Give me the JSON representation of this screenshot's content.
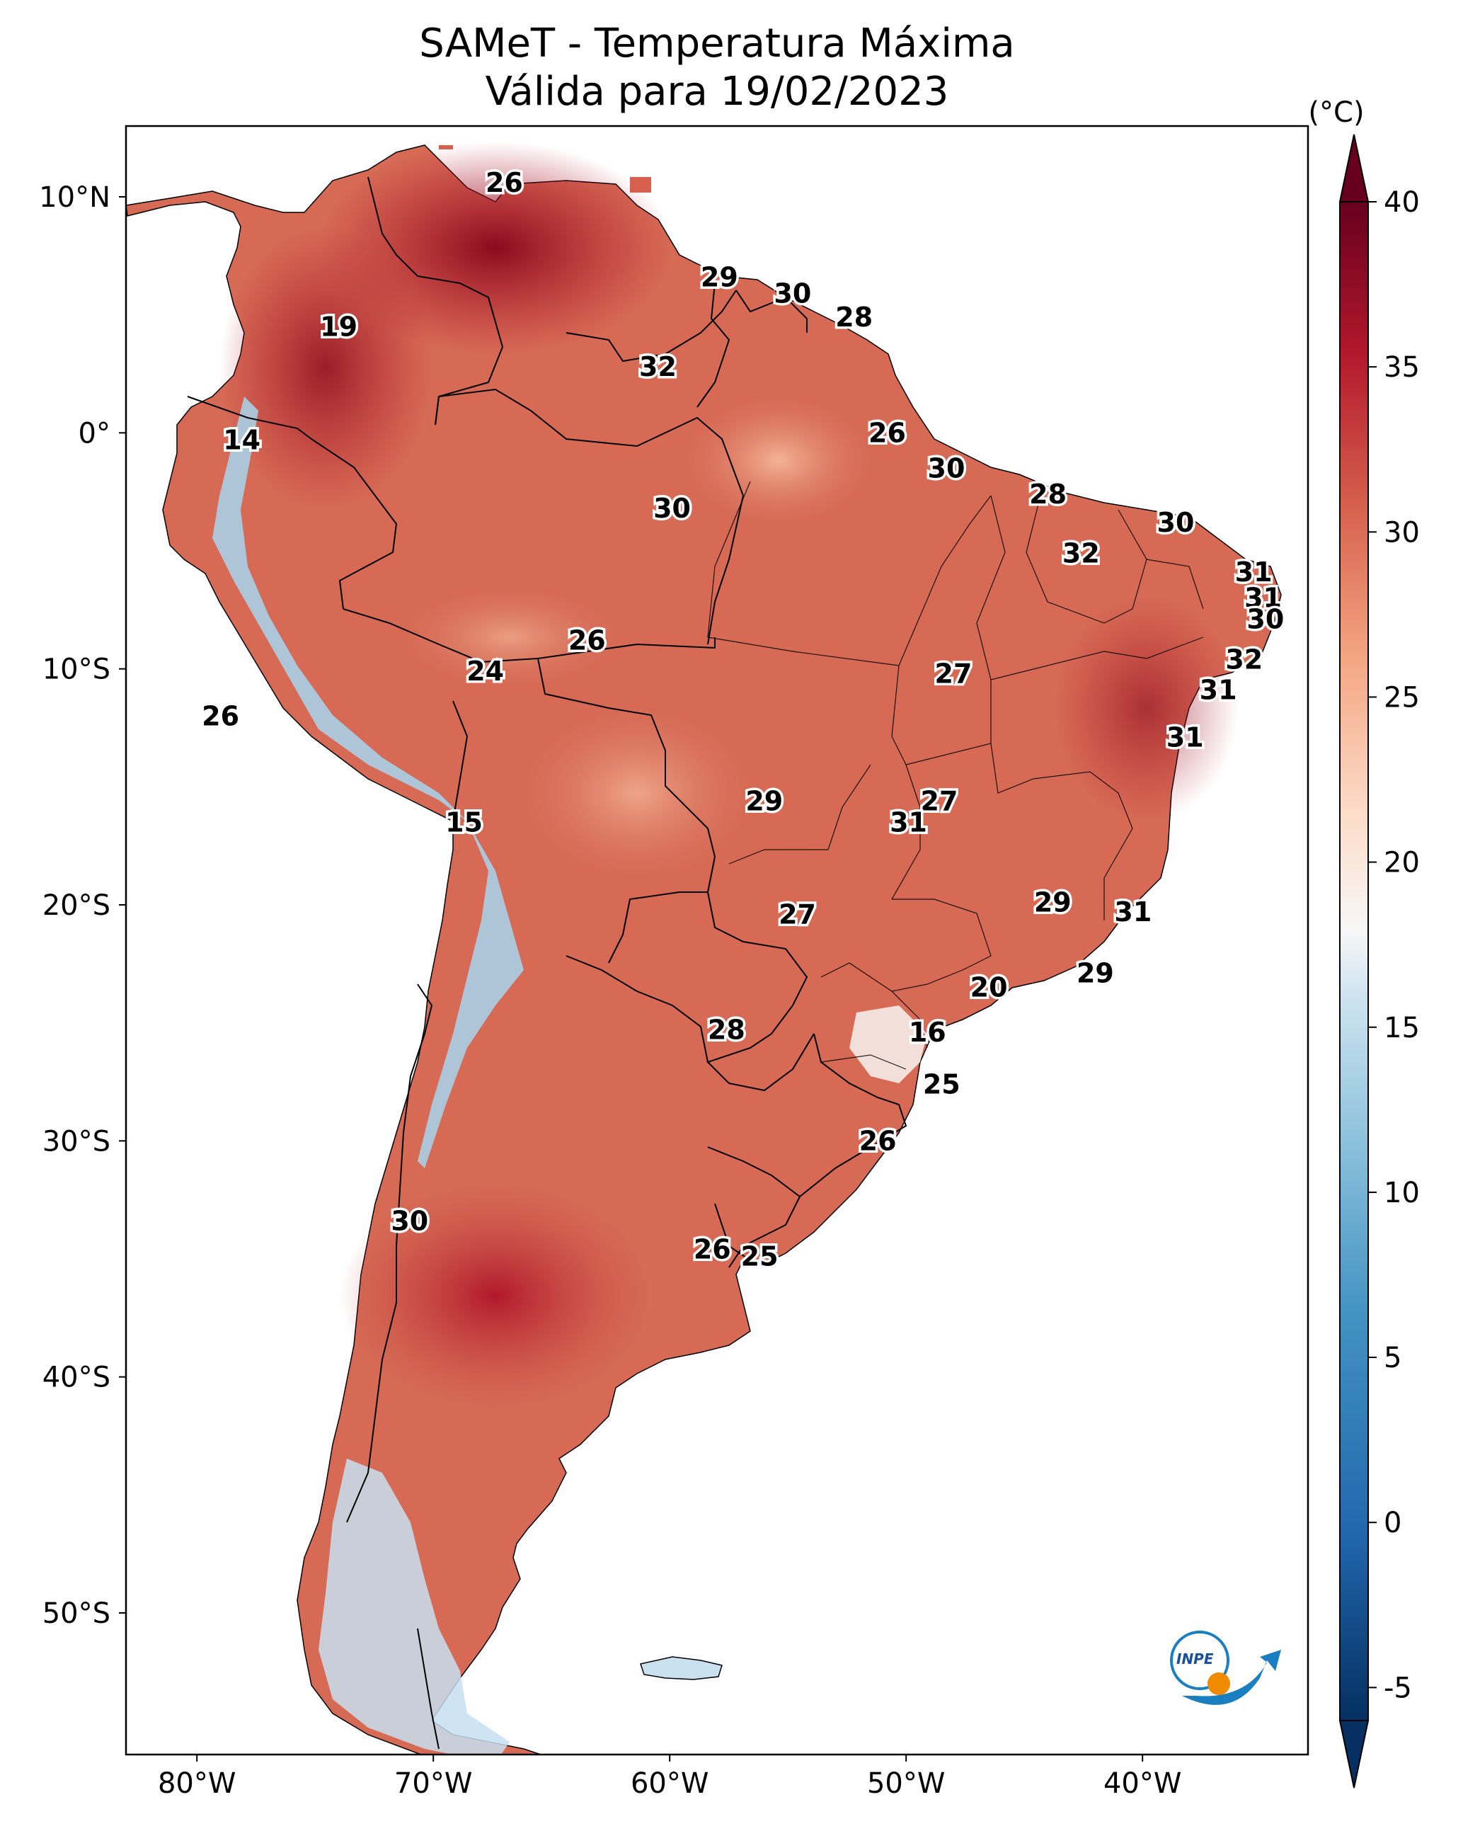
{
  "title": {
    "line1": "SAMeT - Temperatura Máxima",
    "line2": "Válida para 19/02/2023"
  },
  "map": {
    "lat_ticks": [
      "10°N",
      "0°",
      "10°S",
      "20°S",
      "30°S",
      "40°S",
      "50°S"
    ],
    "lon_ticks": [
      "80°W",
      "70°W",
      "60°W",
      "50°W",
      "40°W"
    ],
    "extent": {
      "lon_min": -83,
      "lon_max": -33,
      "lat_min": -56,
      "lat_max": 13
    }
  },
  "colorbar": {
    "unit": "(°C)",
    "ticks": [
      "40",
      "35",
      "30",
      "25",
      "20",
      "15",
      "10",
      "5",
      "0",
      "-5"
    ],
    "min": -6,
    "max": 40
  },
  "labels": [
    {
      "text": "26",
      "lon": -67.0,
      "lat": 10.6
    },
    {
      "text": "29",
      "lon": -57.9,
      "lat": 6.6
    },
    {
      "text": "30",
      "lon": -54.8,
      "lat": 5.9
    },
    {
      "text": "28",
      "lon": -52.2,
      "lat": 4.9
    },
    {
      "text": "19",
      "lon": -74.0,
      "lat": 4.5
    },
    {
      "text": "32",
      "lon": -60.5,
      "lat": 2.8
    },
    {
      "text": "14",
      "lon": -78.1,
      "lat": -0.3
    },
    {
      "text": "26",
      "lon": -50.8,
      "lat": 0.0
    },
    {
      "text": "30",
      "lon": -48.3,
      "lat": -1.5
    },
    {
      "text": "28",
      "lon": -44.0,
      "lat": -2.6
    },
    {
      "text": "30",
      "lon": -59.9,
      "lat": -3.2
    },
    {
      "text": "30",
      "lon": -38.6,
      "lat": -3.8
    },
    {
      "text": "32",
      "lon": -42.6,
      "lat": -5.1
    },
    {
      "text": "31",
      "lon": -35.3,
      "lat": -5.9
    },
    {
      "text": "31",
      "lon": -34.9,
      "lat": -7.0
    },
    {
      "text": "30",
      "lon": -34.8,
      "lat": -7.9
    },
    {
      "text": "26",
      "lon": -63.5,
      "lat": -8.8
    },
    {
      "text": "32",
      "lon": -35.7,
      "lat": -9.6
    },
    {
      "text": "24",
      "lon": -67.8,
      "lat": -10.1
    },
    {
      "text": "27",
      "lon": -48.0,
      "lat": -10.2
    },
    {
      "text": "31",
      "lon": -36.8,
      "lat": -10.9
    },
    {
      "text": "26",
      "lon": -79.0,
      "lat": -12.0
    },
    {
      "text": "31",
      "lon": -38.2,
      "lat": -12.9
    },
    {
      "text": "29",
      "lon": -56.0,
      "lat": -15.6
    },
    {
      "text": "27",
      "lon": -48.6,
      "lat": -15.6
    },
    {
      "text": "31",
      "lon": -49.9,
      "lat": -16.5
    },
    {
      "text": "15",
      "lon": -68.7,
      "lat": -16.5
    },
    {
      "text": "29",
      "lon": -43.8,
      "lat": -19.9
    },
    {
      "text": "31",
      "lon": -40.4,
      "lat": -20.3
    },
    {
      "text": "27",
      "lon": -54.6,
      "lat": -20.4
    },
    {
      "text": "29",
      "lon": -42.0,
      "lat": -22.9
    },
    {
      "text": "20",
      "lon": -46.5,
      "lat": -23.5
    },
    {
      "text": "28",
      "lon": -57.6,
      "lat": -25.3
    },
    {
      "text": "16",
      "lon": -49.1,
      "lat": -25.4
    },
    {
      "text": "25",
      "lon": -48.5,
      "lat": -27.6
    },
    {
      "text": "26",
      "lon": -51.2,
      "lat": -30.0
    },
    {
      "text": "30",
      "lon": -71.0,
      "lat": -33.4
    },
    {
      "text": "26",
      "lon": -58.2,
      "lat": -34.6
    },
    {
      "text": "25",
      "lon": -56.2,
      "lat": -34.9
    }
  ],
  "logo": {
    "text": "INPE"
  },
  "colors": {
    "hot": "#67001f",
    "warm": "#d6604d",
    "mild": "#f4a582",
    "neutral": "#f7f7f7",
    "cool": "#92c5de",
    "cold": "#2166ac",
    "ocean": "#ffffff"
  }
}
